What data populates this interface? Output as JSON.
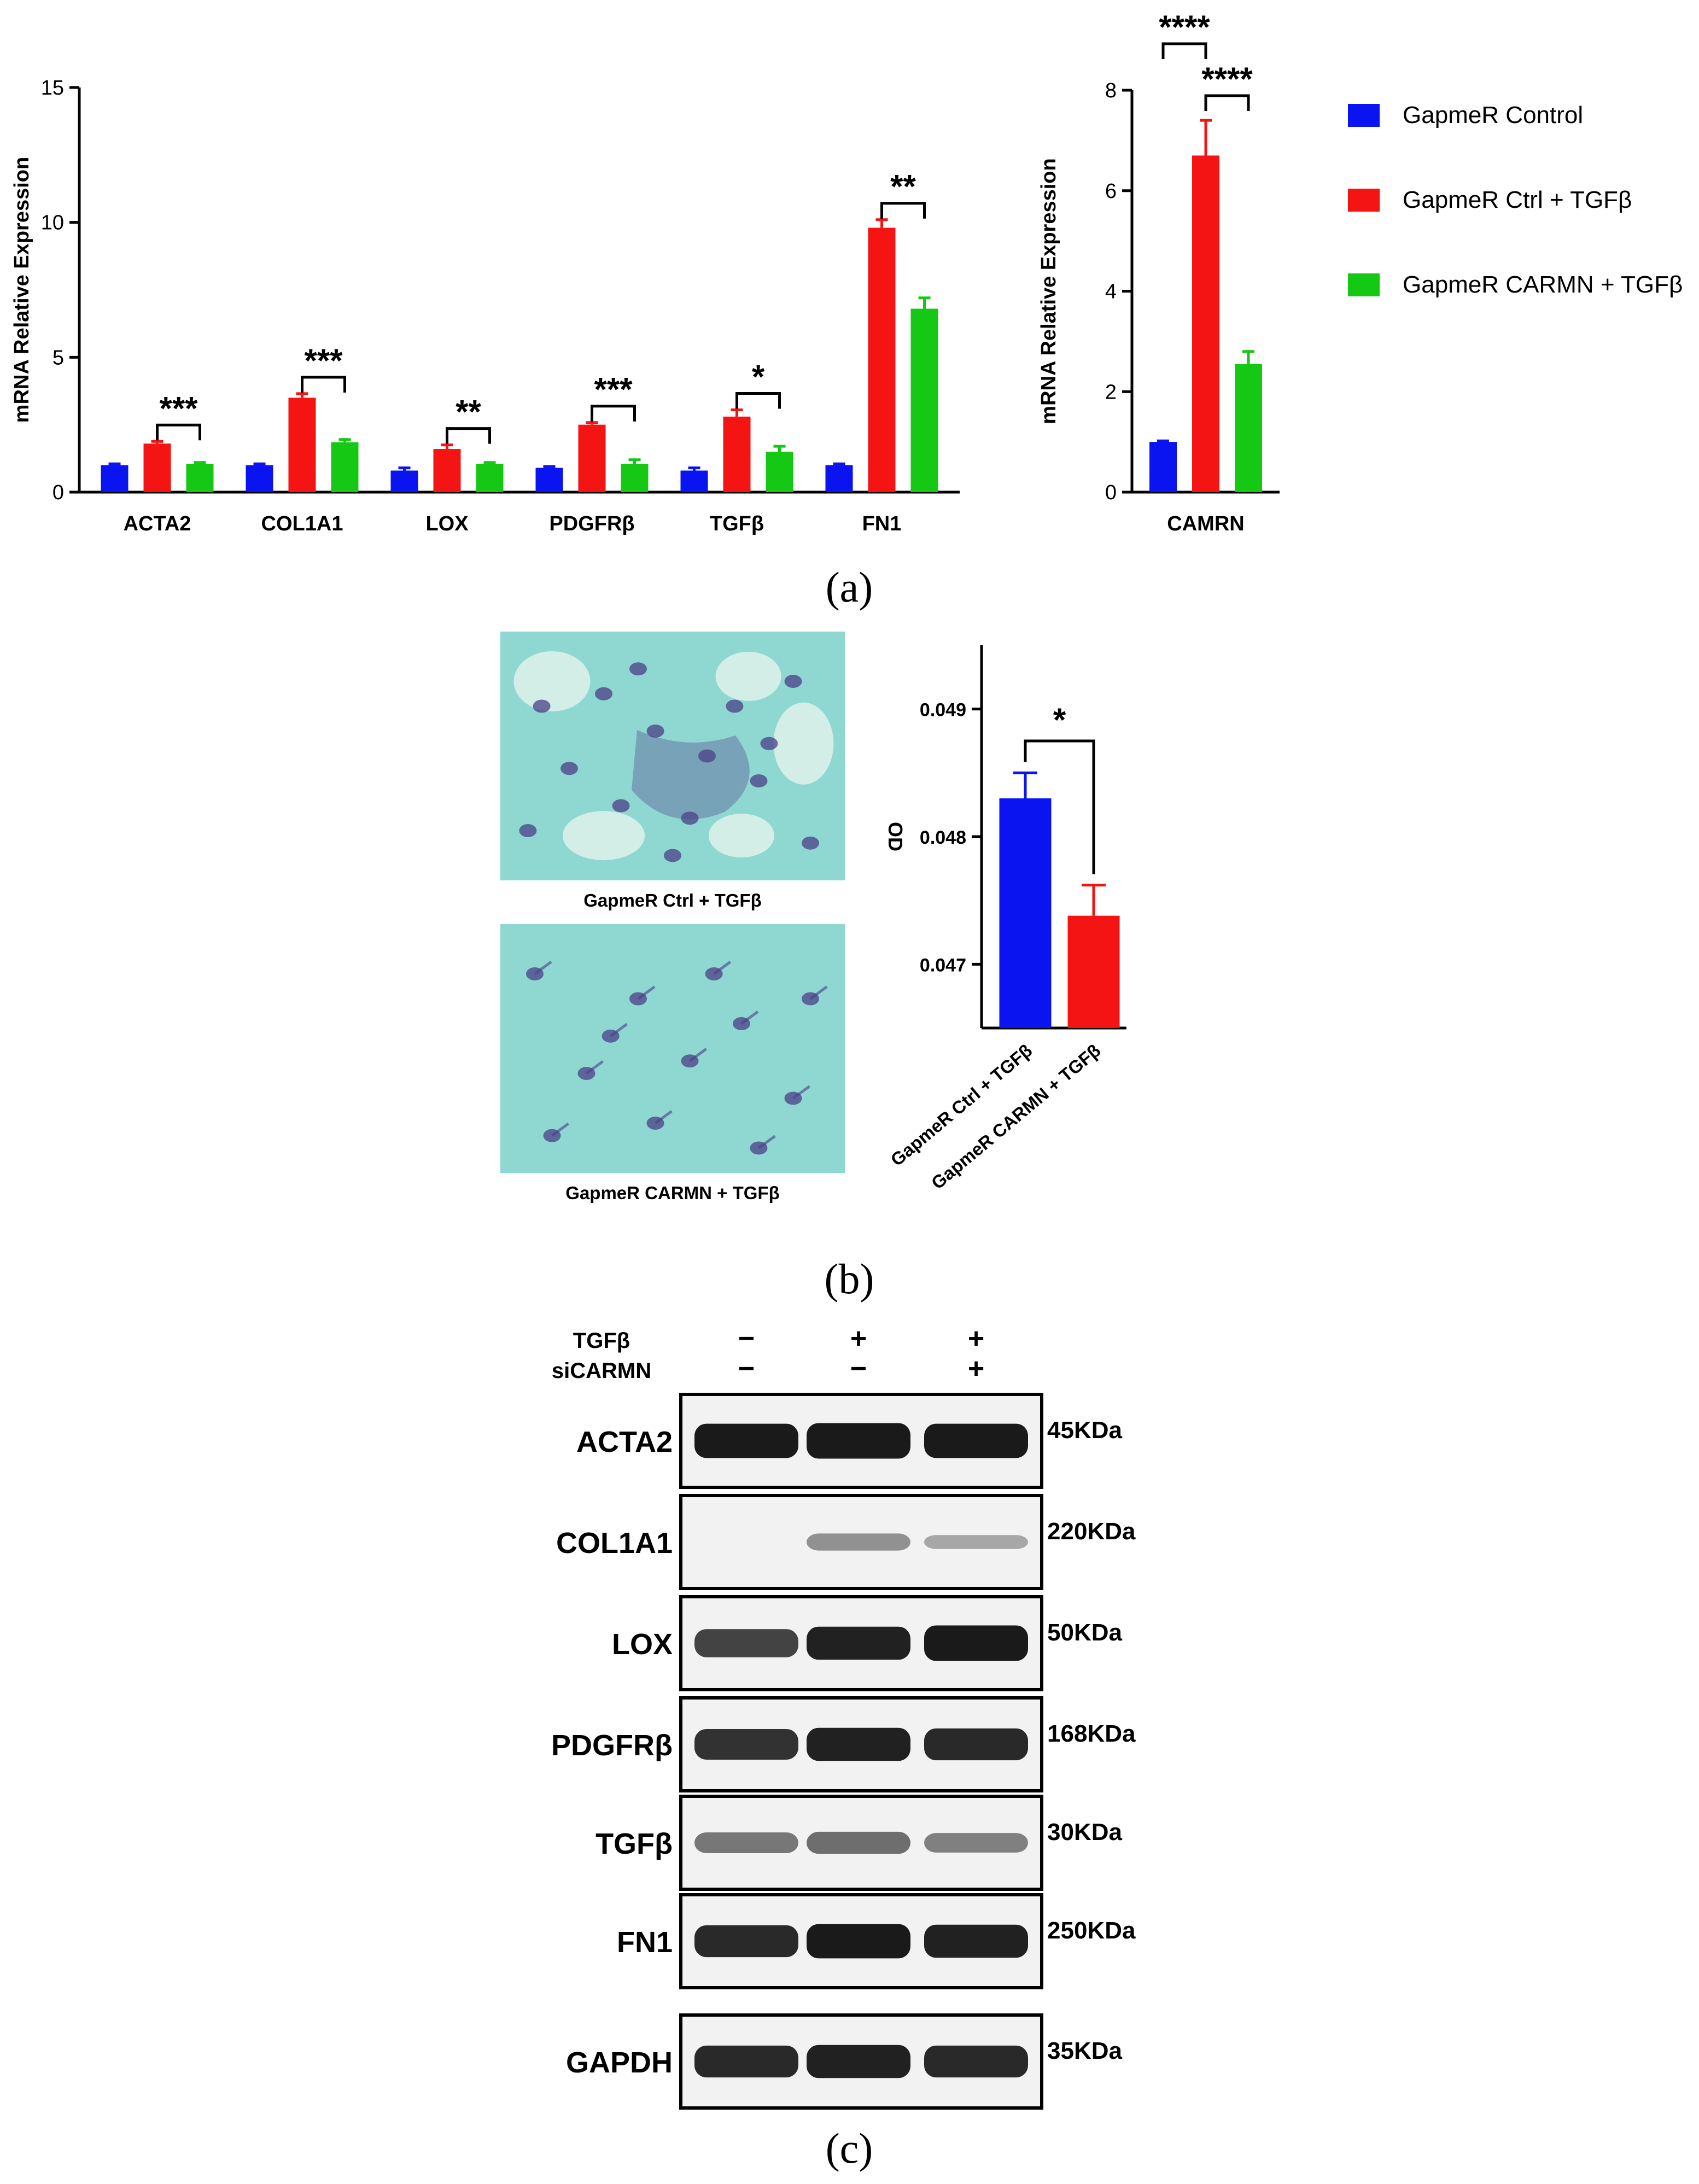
{
  "colors": {
    "control": "#0a14f0",
    "ctrl_tgfb": "#f51414",
    "carmn_tgfb": "#14c814",
    "axis": "#000000",
    "micro_bg": "#8fd8d2",
    "micro_cell": "#4b3f86",
    "blot_bg": "#f2f2f2",
    "band": "#1a1a1a"
  },
  "legend": {
    "position": "top-right",
    "items": [
      {
        "label": "GapmeR Control",
        "color_key": "control"
      },
      {
        "label": "GapmeR Ctrl + TGFβ",
        "color_key": "ctrl_tgfb"
      },
      {
        "label": "GapmeR CARMN + TGFβ",
        "color_key": "carmn_tgfb"
      }
    ]
  },
  "panels": {
    "a": "(a)",
    "b": "(b)",
    "c": "(c)"
  },
  "chart_data": [
    {
      "id": "a-left",
      "type": "bar",
      "ylabel": "mRNA Relative Expression",
      "ylim": [
        0,
        15
      ],
      "yticks": [
        0,
        5,
        10,
        15
      ],
      "categories": [
        "ACTA2",
        "COL1A1",
        "LOX",
        "PDGFRβ",
        "TGFβ",
        "FN1"
      ],
      "series": [
        {
          "name": "GapmeR Control",
          "color_key": "control",
          "values": [
            1.0,
            1.0,
            0.8,
            0.9,
            0.8,
            1.0
          ],
          "errors": [
            0.05,
            0.05,
            0.1,
            0.05,
            0.1,
            0.05
          ]
        },
        {
          "name": "GapmeR Ctrl + TGFβ",
          "color_key": "ctrl_tgfb",
          "values": [
            1.8,
            3.5,
            1.6,
            2.5,
            2.8,
            9.8
          ],
          "errors": [
            0.08,
            0.15,
            0.15,
            0.08,
            0.25,
            0.3
          ]
        },
        {
          "name": "GapmeR CARMN + TGFβ",
          "color_key": "carmn_tgfb",
          "values": [
            1.05,
            1.85,
            1.05,
            1.05,
            1.5,
            6.8
          ],
          "errors": [
            0.05,
            0.1,
            0.05,
            0.15,
            0.2,
            0.4
          ]
        }
      ],
      "significance": [
        {
          "category": 0,
          "from": 1,
          "to": 2,
          "label": "***"
        },
        {
          "category": 1,
          "from": 1,
          "to": 2,
          "label": "***"
        },
        {
          "category": 2,
          "from": 1,
          "to": 2,
          "label": "**"
        },
        {
          "category": 3,
          "from": 1,
          "to": 2,
          "label": "***"
        },
        {
          "category": 4,
          "from": 1,
          "to": 2,
          "label": "*"
        },
        {
          "category": 5,
          "from": 1,
          "to": 2,
          "label": "**"
        }
      ]
    },
    {
      "id": "a-right",
      "type": "bar",
      "ylabel": "mRNA Relative Expression",
      "ylim": [
        0,
        8
      ],
      "yticks": [
        0,
        2,
        4,
        6,
        8
      ],
      "categories": [
        "CAMRN"
      ],
      "series": [
        {
          "name": "GapmeR Control",
          "color_key": "control",
          "values": [
            1.0
          ],
          "errors": [
            0.02
          ]
        },
        {
          "name": "GapmeR Ctrl + TGFβ",
          "color_key": "ctrl_tgfb",
          "values": [
            6.7
          ],
          "errors": [
            0.7
          ]
        },
        {
          "name": "GapmeR CARMN + TGFβ",
          "color_key": "carmn_tgfb",
          "values": [
            2.55
          ],
          "errors": [
            0.25
          ]
        }
      ],
      "significance": [
        {
          "category": 0,
          "from": 0,
          "to": 1,
          "label": "****"
        },
        {
          "category": 0,
          "from": 1,
          "to": 2,
          "label": "****"
        }
      ]
    },
    {
      "id": "b",
      "type": "bar",
      "ylabel": "OD",
      "ylim": [
        0.0465,
        0.0495
      ],
      "yticks": [
        0.047,
        0.048,
        0.049
      ],
      "ytick_labels": [
        "0.047",
        "0.048",
        "0.049"
      ],
      "categories": [
        "GapmeR Ctrl + TGFβ",
        "GapmeR CARMN + TGFβ"
      ],
      "values": [
        0.0483,
        0.04738
      ],
      "errors": [
        0.0002,
        0.00024
      ],
      "bar_color_keys": [
        "control",
        "ctrl_tgfb"
      ],
      "significance": [
        {
          "from": 0,
          "to": 1,
          "label": "*"
        }
      ]
    }
  ],
  "micrographs": [
    {
      "caption": "GapmeR Ctrl + TGFβ"
    },
    {
      "caption": "GapmeR CARMN + TGFβ"
    }
  ],
  "blot": {
    "conditions": [
      {
        "label": "TGFβ",
        "marks": [
          "−",
          "+",
          "+"
        ]
      },
      {
        "label": "siCARMN",
        "marks": [
          "−",
          "−",
          "+"
        ]
      }
    ],
    "rows": [
      {
        "protein": "ACTA2",
        "size": "45KDa",
        "intensity": [
          0.95,
          1.0,
          0.95
        ]
      },
      {
        "protein": "COL1A1",
        "size": "220KDa",
        "intensity": [
          0.0,
          0.25,
          0.12
        ]
      },
      {
        "protein": "LOX",
        "size": "50KDa",
        "intensity": [
          0.7,
          0.9,
          1.0
        ]
      },
      {
        "protein": "PDGFRβ",
        "size": "168KDa",
        "intensity": [
          0.8,
          0.9,
          0.85
        ]
      },
      {
        "protein": "TGFβ",
        "size": "30KDa",
        "intensity": [
          0.4,
          0.45,
          0.35
        ]
      },
      {
        "protein": "FN1",
        "size": "250KDa",
        "intensity": [
          0.85,
          0.95,
          0.9
        ]
      },
      {
        "protein": "GAPDH",
        "size": "35KDa",
        "intensity": [
          0.85,
          0.9,
          0.85
        ]
      }
    ]
  }
}
